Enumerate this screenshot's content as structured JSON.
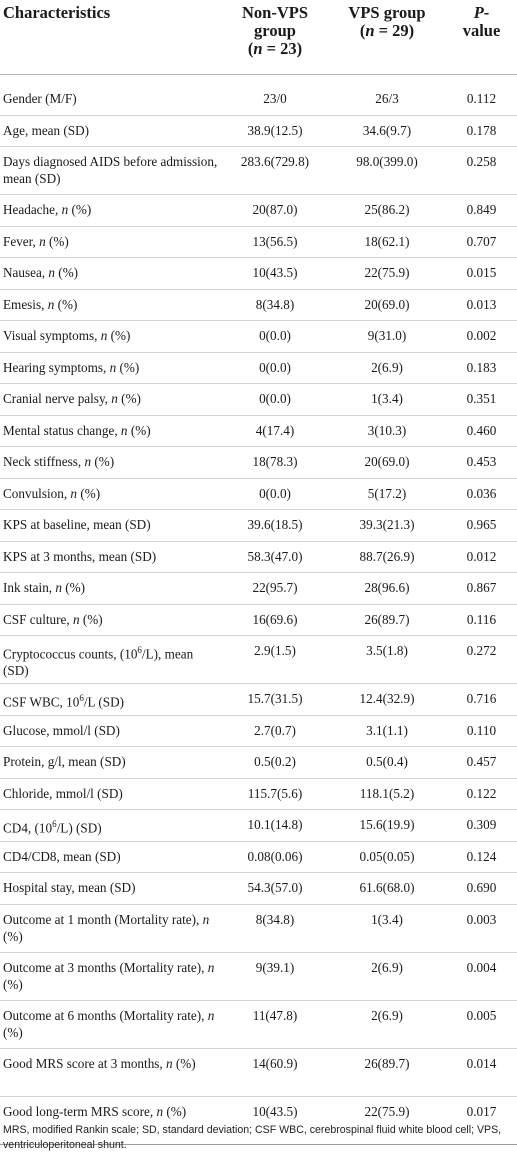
{
  "header": {
    "characteristics": "Characteristics",
    "non_vps_line1": "Non-VPS",
    "non_vps_line2": "group",
    "non_vps_n_pre": "(",
    "non_vps_n_var": "n",
    "non_vps_n_post": " = 23)",
    "vps_line1": "VPS group",
    "vps_n_pre": "(",
    "vps_n_var": "n",
    "vps_n_post": " = 29)",
    "p_line1_italic": "P",
    "p_line1_rest": "-",
    "p_line2": "value"
  },
  "rows": [
    {
      "label": "Gender (M/F)",
      "italic_n": false,
      "non_vps": "23/0",
      "vps": "26/3",
      "p": "0.112"
    },
    {
      "label": "Age, mean (SD)",
      "italic_n": false,
      "non_vps": "38.9(12.5)",
      "vps": "34.6(9.7)",
      "p": "0.178"
    },
    {
      "label": "Days diagnosed AIDS before admission, mean (SD)",
      "italic_n": false,
      "non_vps": "283.6(729.8)",
      "vps": "98.0(399.0)",
      "p": "0.258",
      "tall": true
    },
    {
      "label": "Headache, ",
      "italic_n": true,
      "suffix": " (%)",
      "non_vps": "20(87.0)",
      "vps": "25(86.2)",
      "p": "0.849"
    },
    {
      "label": "Fever, ",
      "italic_n": true,
      "suffix": " (%)",
      "non_vps": "13(56.5)",
      "vps": "18(62.1)",
      "p": "0.707"
    },
    {
      "label": "Nausea, ",
      "italic_n": true,
      "suffix": " (%)",
      "non_vps": "10(43.5)",
      "vps": "22(75.9)",
      "p": "0.015"
    },
    {
      "label": "Emesis, ",
      "italic_n": true,
      "suffix": " (%)",
      "non_vps": "8(34.8)",
      "vps": "20(69.0)",
      "p": "0.013"
    },
    {
      "label": "Visual symptoms, ",
      "italic_n": true,
      "suffix": " (%)",
      "non_vps": "0(0.0)",
      "vps": "9(31.0)",
      "p": "0.002"
    },
    {
      "label": "Hearing symptoms, ",
      "italic_n": true,
      "suffix": " (%)",
      "non_vps": "0(0.0)",
      "vps": "2(6.9)",
      "p": "0.183"
    },
    {
      "label": "Cranial nerve palsy, ",
      "italic_n": true,
      "suffix": " (%)",
      "non_vps": "0(0.0)",
      "vps": "1(3.4)",
      "p": "0.351"
    },
    {
      "label": "Mental status change, ",
      "italic_n": true,
      "suffix": " (%)",
      "non_vps": "4(17.4)",
      "vps": "3(10.3)",
      "p": "0.460"
    },
    {
      "label": "Neck stiffness, ",
      "italic_n": true,
      "suffix": " (%)",
      "non_vps": "18(78.3)",
      "vps": "20(69.0)",
      "p": "0.453"
    },
    {
      "label": "Convulsion, ",
      "italic_n": true,
      "suffix": " (%)",
      "non_vps": "0(0.0)",
      "vps": "5(17.2)",
      "p": "0.036"
    },
    {
      "label": "KPS at baseline, mean (SD)",
      "italic_n": false,
      "non_vps": "39.6(18.5)",
      "vps": "39.3(21.3)",
      "p": "0.965"
    },
    {
      "label": "KPS at 3 months, mean (SD)",
      "italic_n": false,
      "non_vps": "58.3(47.0)",
      "vps": "88.7(26.9)",
      "p": "0.012"
    },
    {
      "label": "Ink stain, ",
      "italic_n": true,
      "suffix": " (%)",
      "non_vps": "22(95.7)",
      "vps": "28(96.6)",
      "p": "0.867"
    },
    {
      "label": "CSF culture, ",
      "italic_n": true,
      "suffix": " (%)",
      "non_vps": "16(69.6)",
      "vps": "26(89.7)",
      "p": "0.116"
    },
    {
      "label": "Cryptococcus counts, (10",
      "sup": "6",
      "suffix": "/L), mean (SD)",
      "italic_n": false,
      "non_vps": "2.9(1.5)",
      "vps": "3.5(1.8)",
      "p": "0.272",
      "tall": true
    },
    {
      "label": "CSF WBC, 10",
      "sup": "6",
      "suffix": "/L (SD)",
      "italic_n": false,
      "non_vps": "15.7(31.5)",
      "vps": "12.4(32.9)",
      "p": "0.716"
    },
    {
      "label": "Glucose, mmol/l (SD)",
      "italic_n": false,
      "non_vps": "2.7(0.7)",
      "vps": "3.1(1.1)",
      "p": "0.110"
    },
    {
      "label": "Protein, g/l, mean (SD)",
      "italic_n": false,
      "non_vps": "0.5(0.2)",
      "vps": "0.5(0.4)",
      "p": "0.457"
    },
    {
      "label": "Chloride, mmol/l (SD)",
      "italic_n": false,
      "non_vps": "115.7(5.6)",
      "vps": "118.1(5.2)",
      "p": "0.122"
    },
    {
      "label": "CD4, (10",
      "sup": "6",
      "suffix": "/L) (SD)",
      "italic_n": false,
      "non_vps": "10.1(14.8)",
      "vps": "15.6(19.9)",
      "p": "0.309"
    },
    {
      "label": "CD4/CD8, mean (SD)",
      "italic_n": false,
      "non_vps": "0.08(0.06)",
      "vps": "0.05(0.05)",
      "p": "0.124"
    },
    {
      "label": "Hospital stay, mean (SD)",
      "italic_n": false,
      "non_vps": "54.3(57.0)",
      "vps": "61.6(68.0)",
      "p": "0.690"
    },
    {
      "label": "Outcome at 1 month (Mortality rate), ",
      "italic_n": true,
      "suffix": " (%)",
      "non_vps": "8(34.8)",
      "vps": "1(3.4)",
      "p": "0.003",
      "tall": true
    },
    {
      "label": "Outcome at 3 months (Mortality rate), ",
      "italic_n": true,
      "suffix": " (%)",
      "non_vps": "9(39.1)",
      "vps": "2(6.9)",
      "p": "0.004",
      "tall": true
    },
    {
      "label": "Outcome at 6 months (Mortality rate), ",
      "italic_n": true,
      "suffix": " (%)",
      "non_vps": "11(47.8)",
      "vps": "2(6.9)",
      "p": "0.005",
      "tall": true
    },
    {
      "label": "Good MRS score at 3 months, ",
      "italic_n": true,
      "suffix": " (%)",
      "non_vps": "14(60.9)",
      "vps": "26(89.7)",
      "p": "0.014",
      "tall": true
    },
    {
      "label": "Good long-term MRS score, ",
      "italic_n": true,
      "suffix": " (%)",
      "non_vps": "10(43.5)",
      "vps": "22(75.9)",
      "p": "0.017",
      "tall": true,
      "last": true
    }
  ],
  "footnote": "MRS, modified Rankin scale; SD, standard deviation; CSF WBC, cerebrospinal fluid white blood cell; VPS, ventriculoperitoneal shunt."
}
